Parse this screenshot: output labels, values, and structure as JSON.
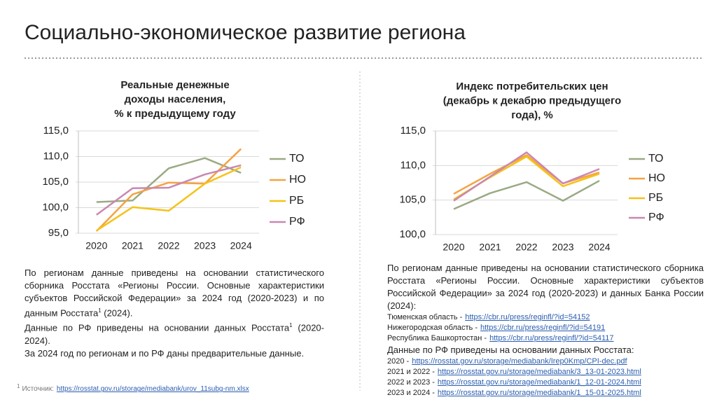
{
  "header": {
    "title": "Социально-экономическое развитие региона"
  },
  "chart_data": [
    {
      "type": "line",
      "title": [
        "Реальные денежные",
        "доходы населения,",
        "% к предыдущему году"
      ],
      "categories": [
        "2020",
        "2021",
        "2022",
        "2023",
        "2024"
      ],
      "series": [
        {
          "name": "ТО",
          "color": "#9aaa84",
          "values": [
            101.1,
            101.4,
            107.7,
            109.7,
            106.8
          ]
        },
        {
          "name": "НО",
          "color": "#f4a343",
          "values": [
            95.4,
            102.6,
            104.9,
            104.7,
            111.5
          ]
        },
        {
          "name": "РБ",
          "color": "#f6c218",
          "values": [
            95.5,
            100.1,
            99.4,
            104.7,
            107.9
          ]
        },
        {
          "name": "РФ",
          "color": "#c988b1",
          "values": [
            98.6,
            103.8,
            103.9,
            106.5,
            108.3
          ]
        }
      ],
      "ylim": [
        95,
        115
      ],
      "yticks": [
        {
          "value": 95,
          "label": "95,0"
        },
        {
          "value": 100,
          "label": "100,0"
        },
        {
          "value": 105,
          "label": "105,0"
        },
        {
          "value": 110,
          "label": "110,0"
        },
        {
          "value": 115,
          "label": "115,0"
        }
      ],
      "grid": true,
      "legend": "right"
    },
    {
      "type": "line",
      "title": [
        "Индекс потребительских цен",
        "(декабрь к декабрю предыдущего",
        "года), %"
      ],
      "categories": [
        "2020",
        "2021",
        "2022",
        "2023",
        "2024"
      ],
      "series": [
        {
          "name": "ТО",
          "color": "#9aaa84",
          "values": [
            103.7,
            106.0,
            107.6,
            104.9,
            107.8
          ]
        },
        {
          "name": "НО",
          "color": "#f4a343",
          "values": [
            105.9,
            108.8,
            111.5,
            107.4,
            109.0
          ]
        },
        {
          "name": "РБ",
          "color": "#f6c218",
          "values": [
            105.1,
            108.3,
            111.3,
            107.0,
            108.8
          ]
        },
        {
          "name": "РФ",
          "color": "#c988b1",
          "values": [
            104.9,
            108.4,
            111.9,
            107.4,
            109.5
          ]
        }
      ],
      "ylim": [
        100,
        115
      ],
      "yticks": [
        {
          "value": 100,
          "label": "100,0"
        },
        {
          "value": 105,
          "label": "105,0"
        },
        {
          "value": 110,
          "label": "110,0"
        },
        {
          "value": 115,
          "label": "115,0"
        }
      ],
      "grid": true,
      "legend": "right"
    }
  ],
  "notes": {
    "left": [
      [
        "По регионам данные приведены на основании статистического сборника Росстата «Регионы России. Основные характеристики субъектов Российской Федерации» за 2024 год (2020-2023) и по данным Росстата",
        "1",
        " (2024)."
      ],
      [
        "Данные по РФ приведены на основании данных Росстата",
        "1",
        " (2020-2024)."
      ],
      [
        "За 2024 год по регионам и по РФ даны предварительные данные."
      ]
    ],
    "footnote": {
      "mark": "1",
      "text": "Источник:",
      "url": "https://rosstat.gov.ru/storage/mediabank/urov_11subg-nm.xlsx"
    },
    "right_intro": "По регионам данные приведены на основании статистического сборника Росстата «Регионы России. Основные характеристики субъектов Российской Федерации» за 2024 год (2020-2023) и данных Банка России (2024):",
    "right_regions": [
      {
        "label": "Тюменская область -",
        "url": "https://cbr.ru/press/reginfl/?id=54152"
      },
      {
        "label": "Нижегородская область -",
        "url": "https://cbr.ru/press/reginfl/?id=54191"
      },
      {
        "label": "Республика Башкортостан -",
        "url": "https://cbr.ru/press/reginfl/?id=54117"
      }
    ],
    "right_rf": "Данные по РФ приведены на основании данных Росстата:",
    "right_rf_sources": [
      {
        "label": "2020 -",
        "url": "https://rosstat.gov.ru/storage/mediabank/Irep0Kmp/CPI-dec.pdf"
      },
      {
        "label": "2021 и 2022 -",
        "url": "https://rosstat.gov.ru/storage/mediabank/3_13-01-2023.html"
      },
      {
        "label": "2022 и 2023 -",
        "url": "https://rosstat.gov.ru/storage/mediabank/1_12-01-2024.html"
      },
      {
        "label": "2023 и 2024 -",
        "url": "https://rosstat.gov.ru/storage/mediabank/1_15-01-2025.html"
      }
    ]
  }
}
